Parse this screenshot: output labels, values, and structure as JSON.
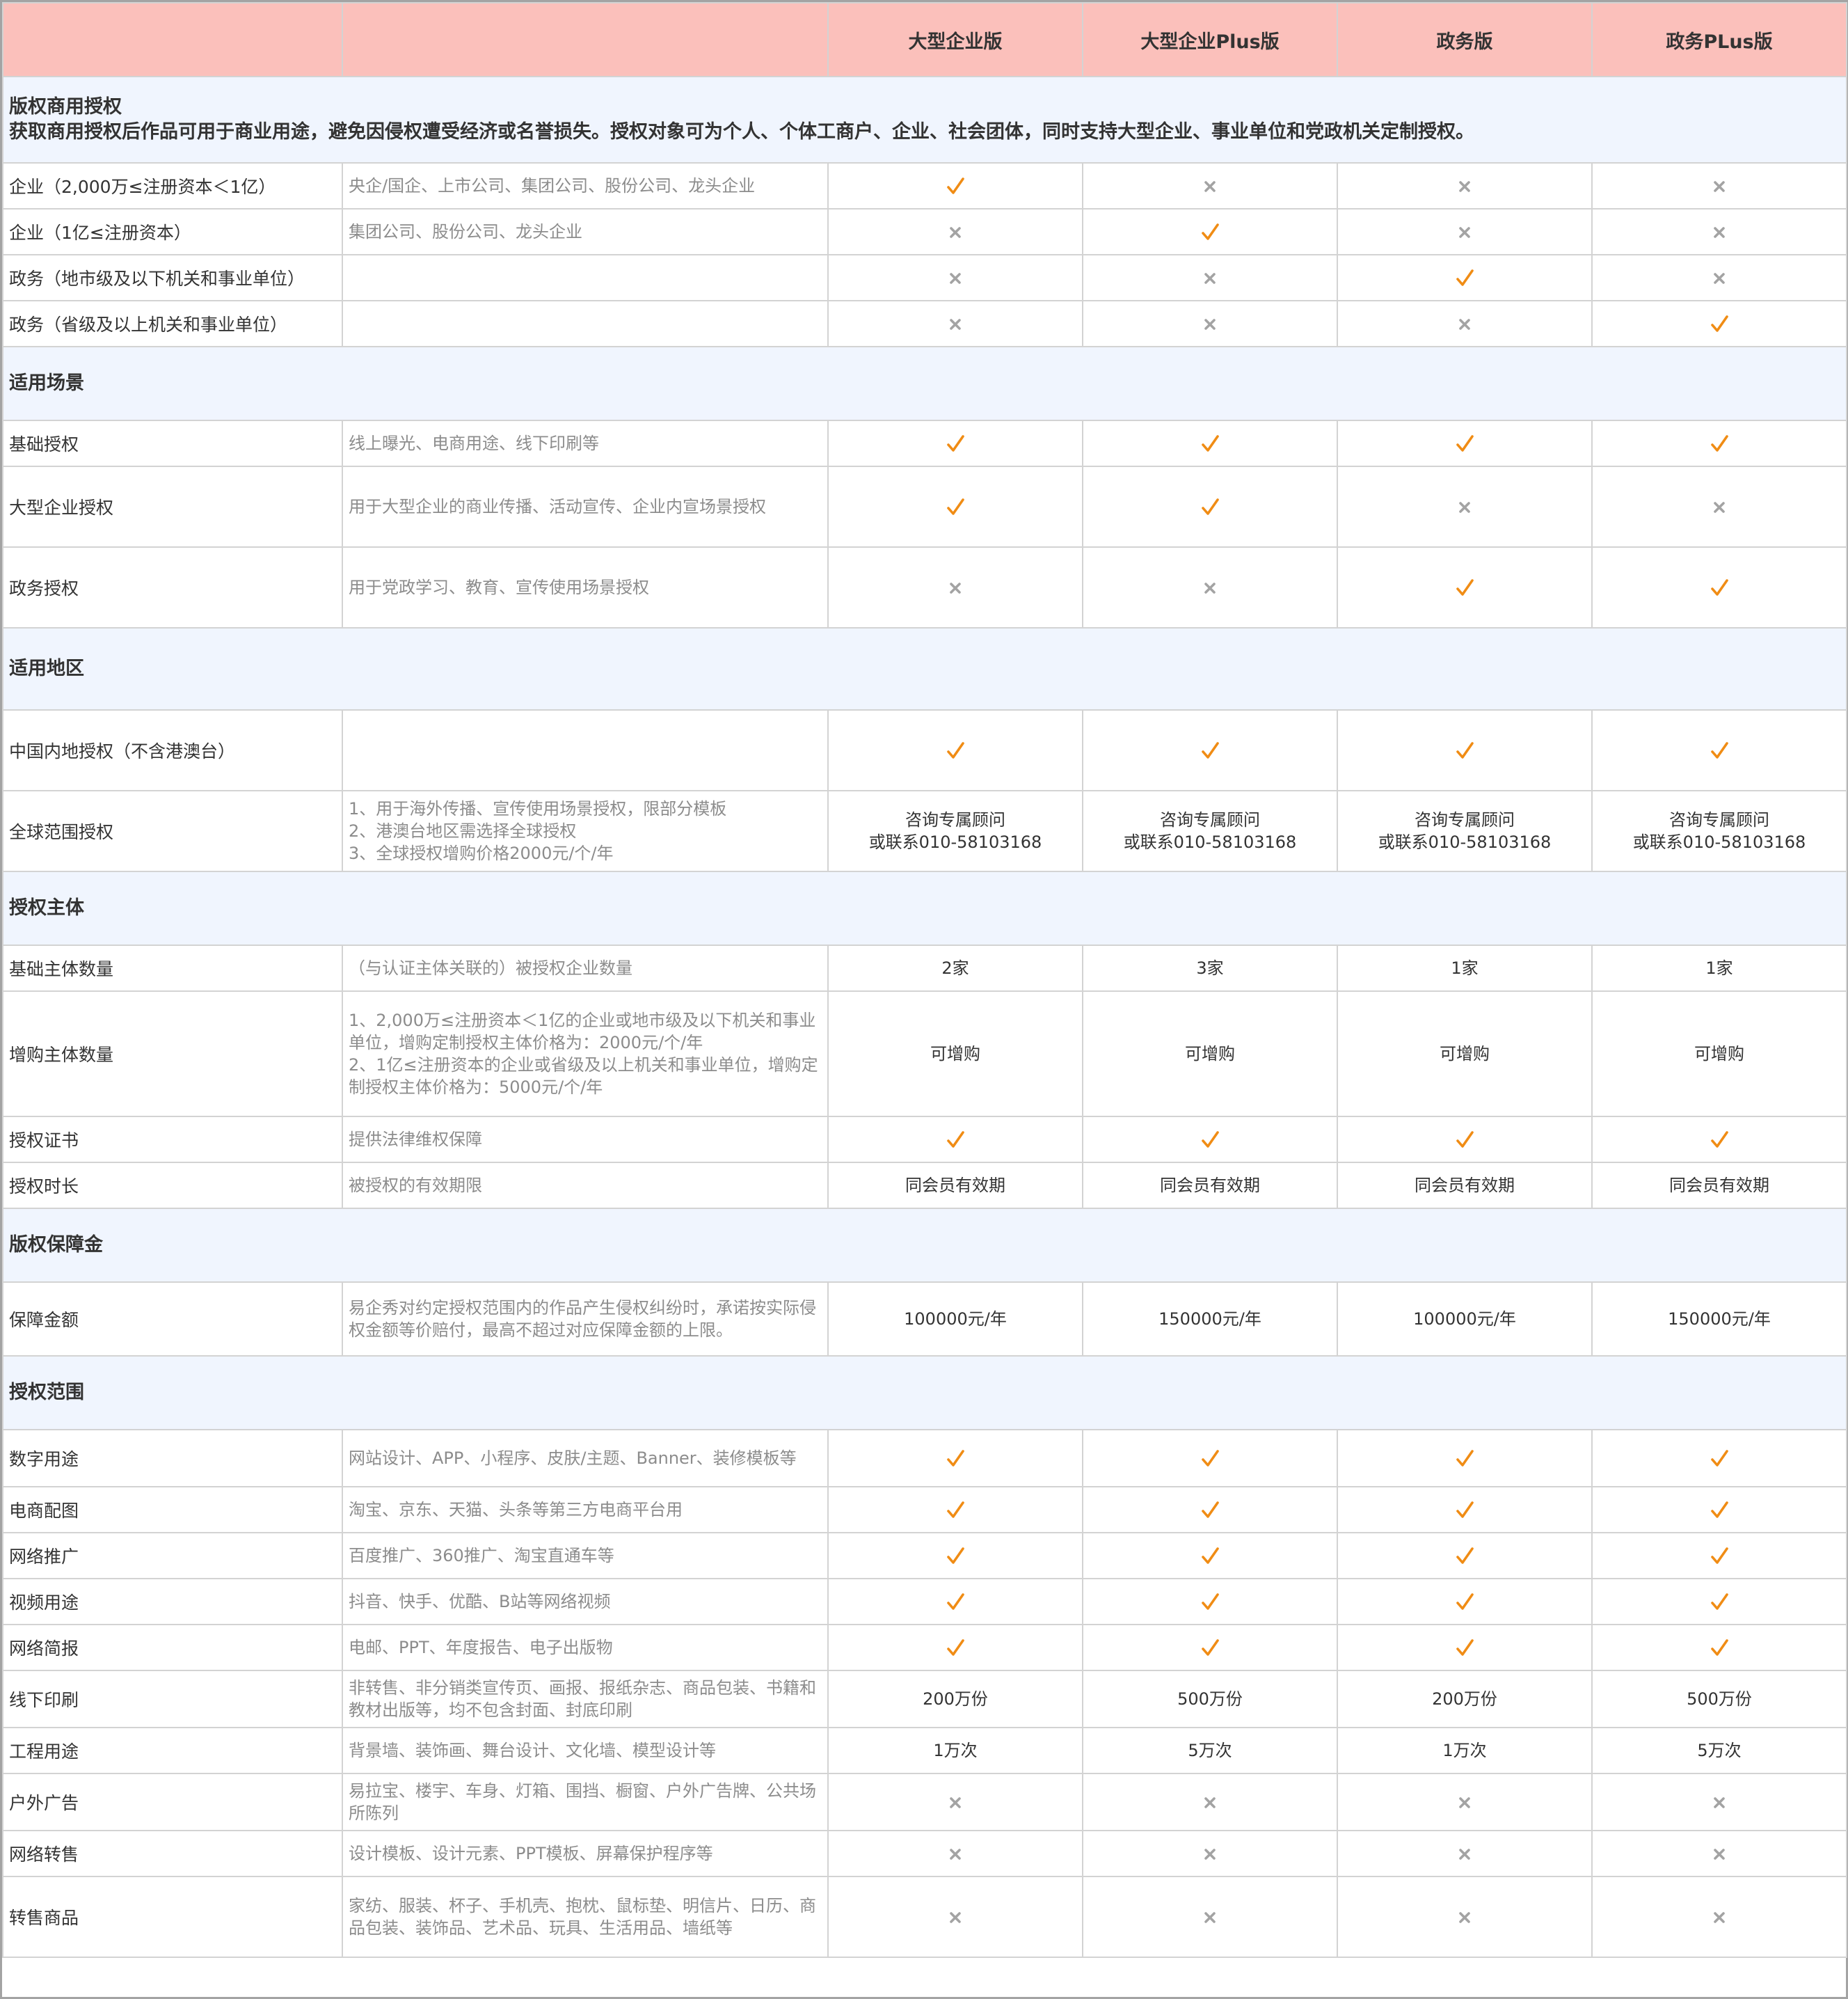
{
  "header": {
    "columns": [
      "",
      "",
      "大型企业版",
      "大型企业Plus版",
      "政务版",
      "政务PLus版"
    ]
  },
  "colors": {
    "header_bg": "#fbc0bb",
    "section_bg": "#f0f5fe",
    "check": "#f08c14",
    "cross": "#a3a3a3"
  },
  "sections": [
    {
      "title": "版权商用授权",
      "subtitle": "获取商用授权后作品可用于商业用途，避免因侵权遭受经济或名誉损失。授权对象可为个人、个体工商户、企业、社会团体，同时支持大型企业、事业单位和党政机关定制授权。",
      "rows": [
        {
          "name": "企业（2,000万≤注册资本＜1亿）",
          "desc": "央企/国企、上市公司、集团公司、股份公司、龙头企业",
          "cells": [
            "check",
            "cross",
            "cross",
            "cross"
          ]
        },
        {
          "name": "企业（1亿≤注册资本）",
          "desc": "集团公司、股份公司、龙头企业",
          "cells": [
            "cross",
            "check",
            "cross",
            "cross"
          ]
        },
        {
          "name": "政务（地市级及以下机关和事业单位）",
          "desc": "",
          "cells": [
            "cross",
            "cross",
            "check",
            "cross"
          ]
        },
        {
          "name": "政务（省级及以上机关和事业单位）",
          "desc": "",
          "cells": [
            "cross",
            "cross",
            "cross",
            "check"
          ]
        }
      ]
    },
    {
      "title": "适用场景",
      "rows": [
        {
          "name": "基础授权",
          "desc": "线上曝光、电商用途、线下印刷等",
          "cells": [
            "check",
            "check",
            "check",
            "check"
          ]
        },
        {
          "name": "大型企业授权",
          "desc": "用于大型企业的商业传播、活动宣传、企业内宣场景授权",
          "cells": [
            "check",
            "check",
            "cross",
            "cross"
          ]
        },
        {
          "name": "政务授权",
          "desc": "用于党政学习、教育、宣传使用场景授权",
          "cells": [
            "cross",
            "cross",
            "check",
            "check"
          ]
        }
      ]
    },
    {
      "title": "适用地区",
      "rows": [
        {
          "name": "中国内地授权（不含港澳台）",
          "desc": "",
          "cells": [
            "check",
            "check",
            "check",
            "check"
          ]
        },
        {
          "name": "全球范围授权",
          "desc": "1、用于海外传播、宣传使用场景授权，限部分模板\n2、港澳台地区需选择全球授权\n3、全球授权增购价格2000元/个/年",
          "cells": [
            "咨询专属顾问\n或联系010-58103168",
            "咨询专属顾问\n或联系010-58103168",
            "咨询专属顾问\n或联系010-58103168",
            "咨询专属顾问\n或联系010-58103168"
          ]
        }
      ]
    },
    {
      "title": "授权主体",
      "rows": [
        {
          "name": "基础主体数量",
          "desc": "（与认证主体关联的）被授权企业数量",
          "cells": [
            "2家",
            "3家",
            "1家",
            "1家"
          ]
        },
        {
          "name": "增购主体数量",
          "desc": "1、2,000万≤注册资本＜1亿的企业或地市级及以下机关和事业单位，增购定制授权主体价格为：2000元/个/年\n2、1亿≤注册资本的企业或省级及以上机关和事业单位，增购定制授权主体价格为：5000元/个/年",
          "cells": [
            "可增购",
            "可增购",
            "可增购",
            "可增购"
          ]
        },
        {
          "name": "授权证书",
          "desc": "提供法律维权保障",
          "cells": [
            "check",
            "check",
            "check",
            "check"
          ]
        },
        {
          "name": "授权时长",
          "desc": "被授权的有效期限",
          "cells": [
            "同会员有效期",
            "同会员有效期",
            "同会员有效期",
            "同会员有效期"
          ]
        }
      ]
    },
    {
      "title": "版权保障金",
      "rows": [
        {
          "name": "保障金额",
          "desc": "易企秀对约定授权范围内的作品产生侵权纠纷时，承诺按实际侵权金额等价赔付，最高不超过对应保障金额的上限。",
          "cells": [
            "100000元/年",
            "150000元/年",
            "100000元/年",
            "150000元/年"
          ]
        }
      ]
    },
    {
      "title": "授权范围",
      "rows": [
        {
          "name": "数字用途",
          "desc": "网站设计、APP、小程序、皮肤/主题、Banner、装修模板等",
          "cells": [
            "check",
            "check",
            "check",
            "check"
          ]
        },
        {
          "name": "电商配图",
          "desc": "淘宝、京东、天猫、头条等第三方电商平台用",
          "cells": [
            "check",
            "check",
            "check",
            "check"
          ]
        },
        {
          "name": "网络推广",
          "desc": "百度推广、360推广、淘宝直通车等",
          "cells": [
            "check",
            "check",
            "check",
            "check"
          ]
        },
        {
          "name": "视频用途",
          "desc": "抖音、快手、优酷、B站等网络视频",
          "cells": [
            "check",
            "check",
            "check",
            "check"
          ]
        },
        {
          "name": "网络简报",
          "desc": "电邮、PPT、年度报告、电子出版物",
          "cells": [
            "check",
            "check",
            "check",
            "check"
          ]
        },
        {
          "name": "线下印刷",
          "desc": "非转售、非分销类宣传页、画报、报纸杂志、商品包装、书籍和教材出版等，均不包含封面、封底印刷",
          "cells": [
            "200万份",
            "500万份",
            "200万份",
            "500万份"
          ]
        },
        {
          "name": "工程用途",
          "desc": "背景墙、装饰画、舞台设计、文化墙、模型设计等",
          "cells": [
            "1万次",
            "5万次",
            "1万次",
            "5万次"
          ]
        },
        {
          "name": "户外广告",
          "desc": "易拉宝、楼宇、车身、灯箱、围挡、橱窗、户外广告牌、公共场所陈列",
          "cells": [
            "cross",
            "cross",
            "cross",
            "cross"
          ]
        },
        {
          "name": "网络转售",
          "desc": "设计模板、设计元素、PPT模板、屏幕保护程序等",
          "cells": [
            "cross",
            "cross",
            "cross",
            "cross"
          ]
        },
        {
          "name": "转售商品",
          "desc": "家纺、服装、杯子、手机壳、抱枕、鼠标垫、明信片、日历、商品包装、装饰品、艺术品、玩具、生活用品、墙纸等",
          "cells": [
            "cross",
            "cross",
            "cross",
            "cross"
          ]
        }
      ]
    }
  ]
}
